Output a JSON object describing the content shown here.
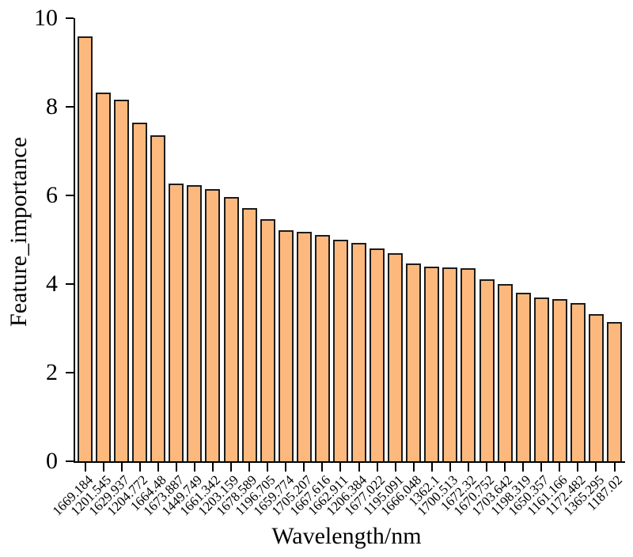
{
  "chart_data": {
    "type": "bar",
    "title": "",
    "xlabel": "Wavelength/nm",
    "ylabel": "Feature_importance",
    "categories": [
      "1669.184",
      "1201.545",
      "1629.937",
      "1204.772",
      "1664.48",
      "1673.887",
      "1449.749",
      "1661.342",
      "1203.159",
      "1678.589",
      "1196.705",
      "1659.774",
      "1705.207",
      "1667.616",
      "1662.911",
      "1206.384",
      "1677.022",
      "1195.091",
      "1666.048",
      "1362.1",
      "1700.513",
      "1672.32",
      "1670.752",
      "1703.642",
      "1198.319",
      "1650.357",
      "1161.166",
      "1172.482",
      "1365.295",
      "1187.02"
    ],
    "values": [
      9.59,
      8.32,
      8.16,
      7.64,
      7.36,
      6.27,
      6.24,
      6.15,
      5.96,
      5.71,
      5.47,
      5.21,
      5.18,
      5.1,
      5.0,
      4.92,
      4.8,
      4.7,
      4.47,
      4.39,
      4.38,
      4.36,
      4.1,
      4.0,
      3.8,
      3.69,
      3.66,
      3.57,
      3.33,
      3.15
    ],
    "ylim": [
      0,
      10
    ],
    "yticks": [
      0,
      2,
      4,
      6,
      8,
      10
    ],
    "ytick_labels": [
      "0",
      "2",
      "4",
      "6",
      "8",
      "10"
    ],
    "x_tick_rotation_deg": 45,
    "bar_color": "#FDB97D",
    "bar_edge_color": "#1c1c1c",
    "axis_color": "#000000",
    "grid": false,
    "legend": null
  }
}
